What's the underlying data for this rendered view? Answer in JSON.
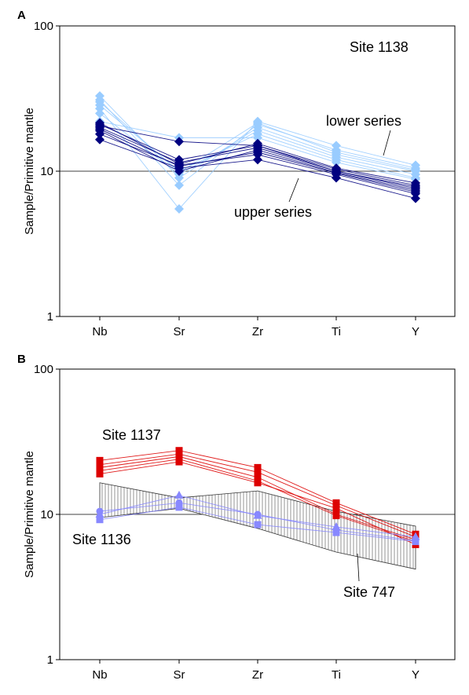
{
  "chart_data": [
    {
      "panel": "A",
      "type": "line",
      "log_y": true,
      "ylim": [
        1,
        100
      ],
      "yticks": [
        "1",
        "10",
        "100"
      ],
      "ylabel": "Sample/Primitive mantle",
      "categories": [
        "Nb",
        "Sr",
        "Zr",
        "Ti",
        "Y"
      ],
      "reference_line": 10,
      "annotations": [
        "Site 1138",
        "lower series",
        "upper series"
      ],
      "series": [
        {
          "group": "upper series",
          "color": "#000080",
          "marker": "diamond",
          "values": [
            16.5,
            10.5,
            12.0,
            9.0,
            6.5
          ]
        },
        {
          "group": "upper series",
          "color": "#000080",
          "marker": "diamond",
          "values": [
            18.0,
            11.0,
            13.0,
            9.5,
            7.0
          ]
        },
        {
          "group": "upper series",
          "color": "#000080",
          "marker": "diamond",
          "values": [
            19.0,
            10.0,
            14.0,
            9.8,
            7.4
          ]
        },
        {
          "group": "upper series",
          "color": "#000080",
          "marker": "diamond",
          "values": [
            20.0,
            11.5,
            14.5,
            10.0,
            7.8
          ]
        },
        {
          "group": "upper series",
          "color": "#000080",
          "marker": "diamond",
          "values": [
            21.0,
            12.0,
            15.0,
            10.3,
            8.0
          ]
        },
        {
          "group": "upper series",
          "color": "#000080",
          "marker": "diamond",
          "values": [
            21.5,
            11.2,
            15.5,
            10.5,
            8.3
          ]
        },
        {
          "group": "upper series",
          "color": "#000080",
          "marker": "diamond",
          "values": [
            19.5,
            10.8,
            13.5,
            9.7,
            7.2
          ]
        },
        {
          "group": "upper series",
          "color": "#000080",
          "marker": "diamond",
          "values": [
            20.5,
            16.0,
            15.0,
            10.0,
            7.6
          ]
        },
        {
          "group": "lower series",
          "color": "#99ccff",
          "marker": "diamond",
          "values": [
            33.0,
            9.0,
            20.0,
            13.0,
            10.0
          ]
        },
        {
          "group": "lower series",
          "color": "#99ccff",
          "marker": "diamond",
          "values": [
            31.0,
            8.0,
            21.0,
            14.0,
            10.5
          ]
        },
        {
          "group": "lower series",
          "color": "#99ccff",
          "marker": "diamond",
          "values": [
            27.0,
            5.5,
            22.0,
            15.0,
            11.0
          ]
        },
        {
          "group": "lower series",
          "color": "#99ccff",
          "marker": "diamond",
          "values": [
            25.0,
            9.5,
            19.0,
            12.5,
            9.5
          ]
        },
        {
          "group": "lower series",
          "color": "#99ccff",
          "marker": "diamond",
          "values": [
            28.5,
            10.0,
            18.0,
            12.0,
            9.0
          ]
        },
        {
          "group": "lower series",
          "color": "#99ccff",
          "marker": "diamond",
          "values": [
            22.0,
            17.0,
            17.0,
            11.5,
            8.8
          ]
        },
        {
          "group": "lower series",
          "color": "#99ccff",
          "marker": "diamond",
          "values": [
            30.0,
            9.8,
            21.5,
            13.5,
            10.2
          ]
        }
      ]
    },
    {
      "panel": "B",
      "type": "line",
      "log_y": true,
      "ylim": [
        1,
        100
      ],
      "yticks": [
        "1",
        "10",
        "100"
      ],
      "ylabel": "Sample/Primitive mantle",
      "categories": [
        "Nb",
        "Sr",
        "Zr",
        "Ti",
        "Y"
      ],
      "reference_line": 10,
      "annotations": [
        "Site 1137",
        "Site 1136",
        "Site 747"
      ],
      "band": {
        "label": "Site 747",
        "upper": [
          16.5,
          13.0,
          14.5,
          10.5,
          8.3
        ],
        "lower": [
          9.5,
          11.0,
          8.0,
          5.5,
          4.2
        ]
      },
      "series": [
        {
          "group": "Site 1137",
          "color": "#dd0000",
          "marker": "square",
          "values": [
            23.5,
            27.5,
            21.0,
            12.0,
            7.3
          ]
        },
        {
          "group": "Site 1137",
          "color": "#dd0000",
          "marker": "square",
          "values": [
            22.0,
            26.0,
            19.5,
            11.5,
            7.0
          ]
        },
        {
          "group": "Site 1137",
          "color": "#dd0000",
          "marker": "square",
          "values": [
            21.0,
            25.0,
            18.0,
            10.0,
            6.7
          ]
        },
        {
          "group": "Site 1137",
          "color": "#dd0000",
          "marker": "square",
          "values": [
            20.0,
            24.0,
            17.0,
            9.8,
            6.5
          ]
        },
        {
          "group": "Site 1137",
          "color": "#dd0000",
          "marker": "square",
          "values": [
            19.0,
            23.0,
            16.5,
            11.0,
            6.2
          ]
        },
        {
          "group": "Site 1136",
          "color": "#8888ff",
          "marker": "square",
          "values": [
            9.2,
            11.2,
            8.5,
            7.5,
            6.5
          ]
        },
        {
          "group": "Site 1136",
          "color": "#8888ff",
          "marker": "circle",
          "values": [
            10.5,
            12.0,
            10.0,
            7.8,
            6.6
          ]
        },
        {
          "group": "Site 1136",
          "color": "#8888ff",
          "marker": "triangle",
          "values": [
            10.0,
            13.5,
            9.8,
            8.2,
            7.0
          ]
        }
      ]
    }
  ]
}
